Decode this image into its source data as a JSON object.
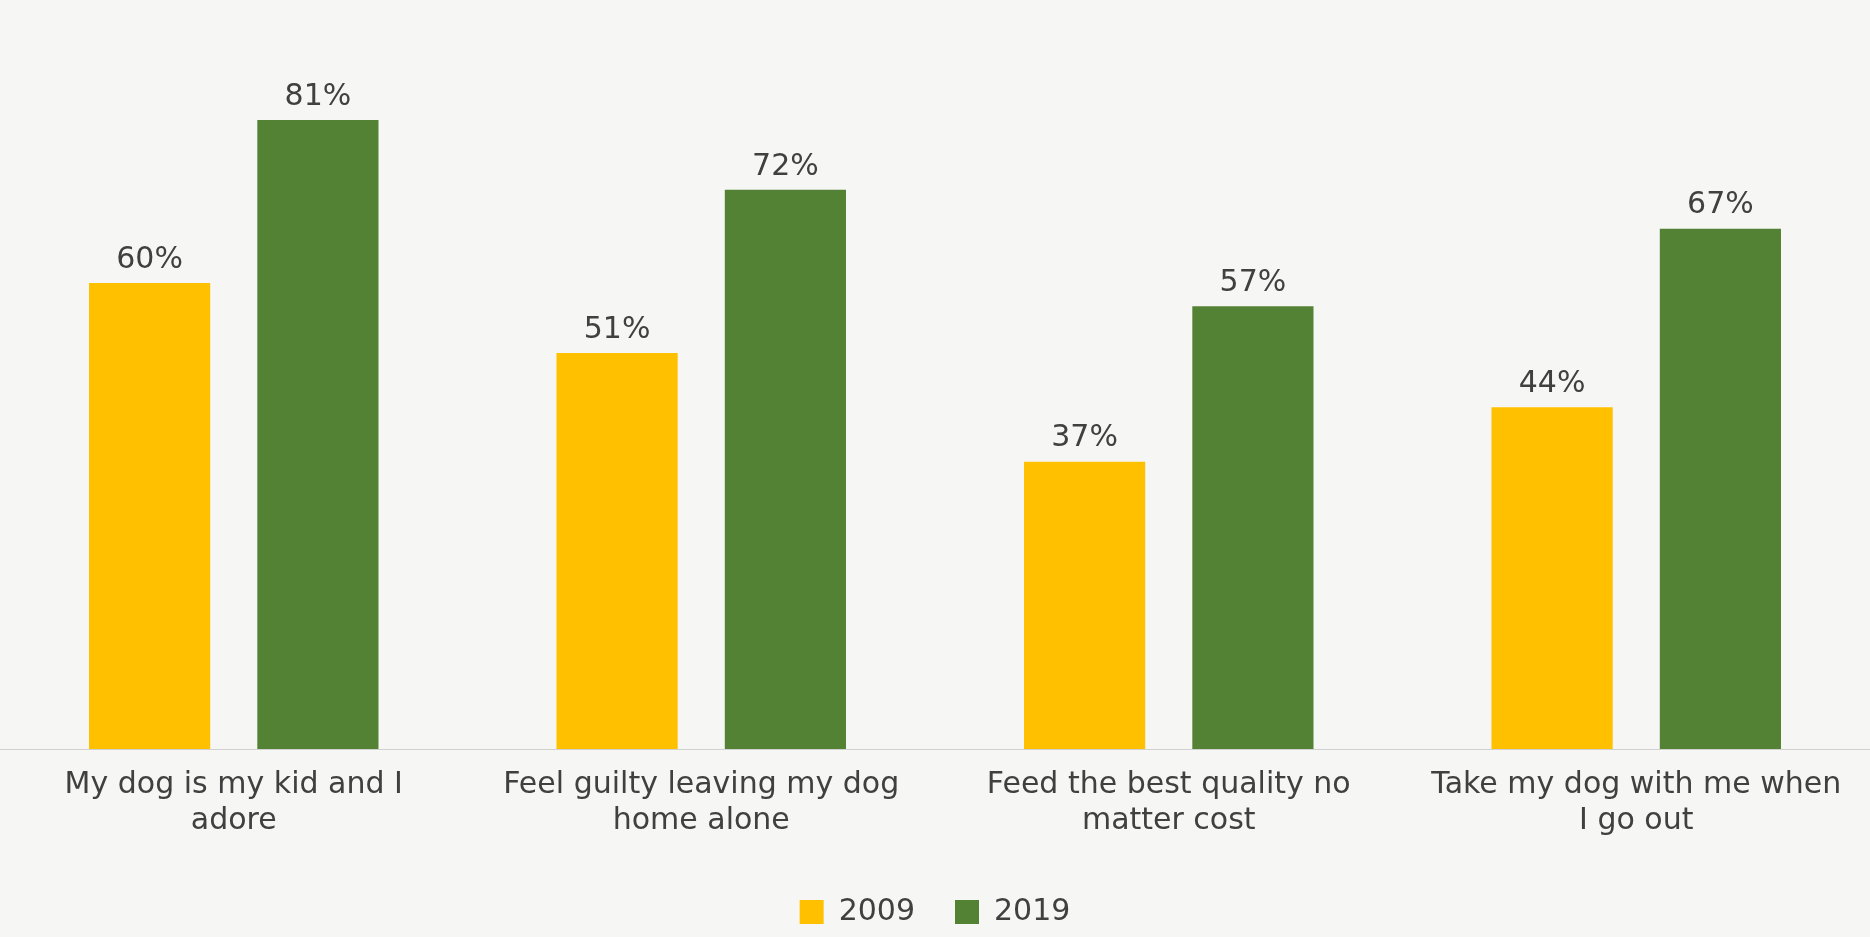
{
  "chart_data": {
    "type": "bar",
    "categories": [
      "My dog is my kid and I adore",
      "Feel guilty leaving my dog home alone",
      "Feed the best quality no matter cost",
      "Take my dog with me when I go out"
    ],
    "series": [
      {
        "name": "2009",
        "color": "#ffc000",
        "values": [
          60,
          51,
          37,
          44
        ],
        "value_labels": [
          "60%",
          "51%",
          "37%",
          "44%"
        ]
      },
      {
        "name": "2019",
        "color": "#548235",
        "values": [
          81,
          72,
          57,
          67
        ],
        "value_labels": [
          "81%",
          "72%",
          "57%",
          "67%"
        ]
      }
    ],
    "legend": "bottom",
    "grid": false
  }
}
